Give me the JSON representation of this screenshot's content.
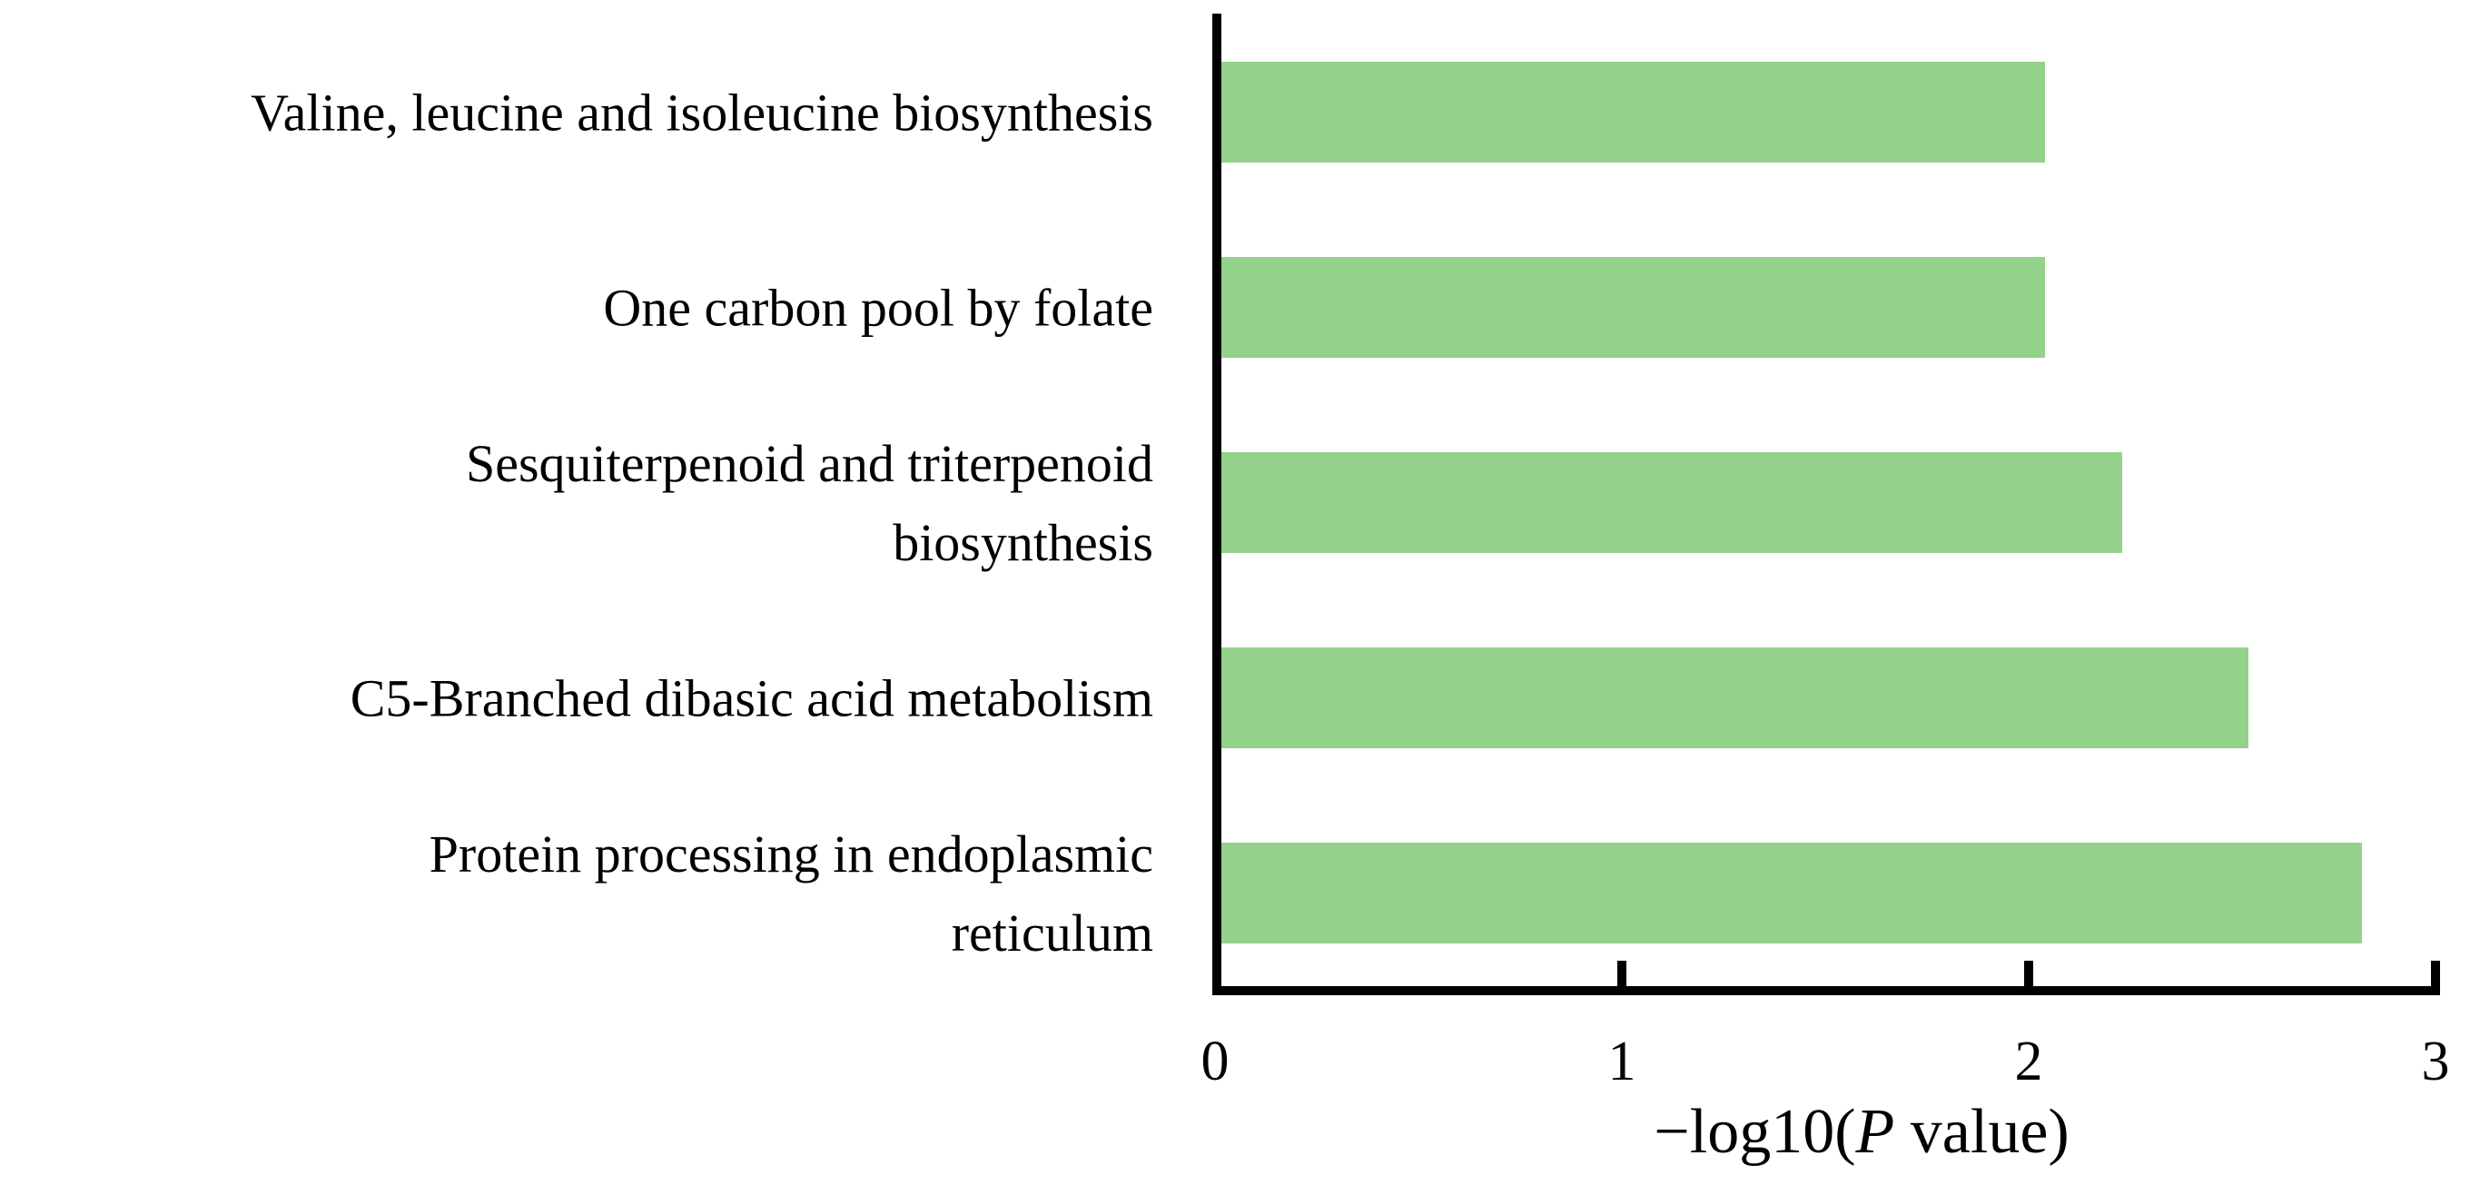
{
  "chart_data": {
    "type": "bar",
    "orientation": "horizontal",
    "title": "",
    "categories": [
      "Valine, leucine and isoleucine biosynthesis",
      "One carbon pool by folate",
      "Sesquiterpenoid and triterpenoid biosynthesis",
      "C5-Branched dibasic acid metabolism",
      "Protein processing in endoplasmic reticulum"
    ],
    "categories_lines": [
      [
        "Valine, leucine and isoleucine biosynthesis"
      ],
      [
        "One carbon pool by folate"
      ],
      [
        "Sesquiterpenoid and triterpenoid",
        "biosynthesis"
      ],
      [
        "C5-Branched dibasic acid metabolism"
      ],
      [
        "Protein processing in endoplasmic",
        "reticulum"
      ]
    ],
    "values": [
      2.04,
      2.04,
      2.23,
      2.54,
      2.82
    ],
    "xlabel": "−log10(P value)",
    "xlabel_parts": {
      "prefix": "−log10(",
      "italic": "P",
      "suffix": " value)"
    },
    "xlim": [
      0,
      3
    ],
    "xticks": [
      0,
      1,
      2,
      3
    ],
    "xtick_labels": [
      "0",
      "1",
      "2",
      "3"
    ],
    "grid": false,
    "legend_position": "none",
    "bar_color": "#94d18a",
    "axis_color": "#000000",
    "text_color": "#000000",
    "background_color": "#ffffff"
  }
}
